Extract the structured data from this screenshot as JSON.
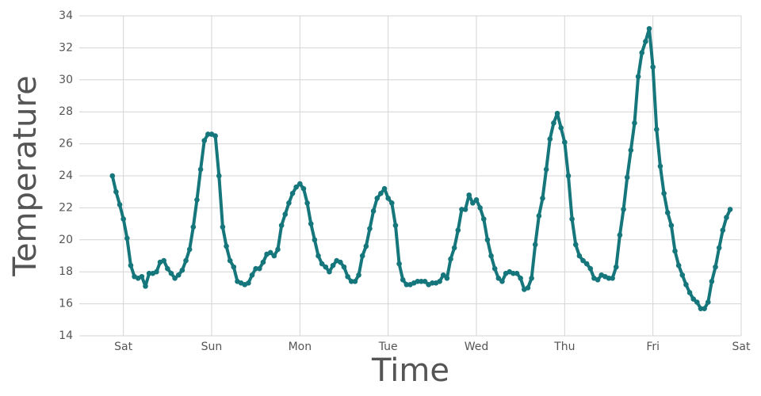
{
  "chart_data": {
    "type": "line",
    "xlabel": "Time",
    "ylabel": "Temperature",
    "color": "#15767b",
    "grid": true,
    "xlim": [
      -12,
      168
    ],
    "xticks": [
      {
        "value": 0,
        "label": "Sat"
      },
      {
        "value": 24,
        "label": "Sun"
      },
      {
        "value": 48,
        "label": "Mon"
      },
      {
        "value": 72,
        "label": "Tue"
      },
      {
        "value": 96,
        "label": "Wed"
      },
      {
        "value": 120,
        "label": "Thu"
      },
      {
        "value": 144,
        "label": "Fri"
      },
      {
        "value": 168,
        "label": "Sat"
      }
    ],
    "ylim": [
      14,
      34
    ],
    "yticks": [
      14,
      16,
      18,
      20,
      22,
      24,
      26,
      28,
      30,
      32,
      34
    ],
    "x": [
      -3,
      -2,
      -1,
      0,
      1,
      2,
      3,
      4,
      5,
      6,
      7,
      8,
      9,
      10,
      11,
      12,
      13,
      14,
      15,
      16,
      17,
      18,
      19,
      20,
      21,
      22,
      23,
      24,
      25,
      26,
      27,
      28,
      29,
      30,
      31,
      32,
      33,
      34,
      35,
      36,
      37,
      38,
      39,
      40,
      41,
      42,
      43,
      44,
      45,
      46,
      47,
      48,
      49,
      50,
      51,
      52,
      53,
      54,
      55,
      56,
      57,
      58,
      59,
      60,
      61,
      62,
      63,
      64,
      65,
      66,
      67,
      68,
      69,
      70,
      71,
      72,
      73,
      74,
      75,
      76,
      77,
      78,
      79,
      80,
      81,
      82,
      83,
      84,
      85,
      86,
      87,
      88,
      89,
      90,
      91,
      92,
      93,
      94,
      95,
      96,
      97,
      98,
      99,
      100,
      101,
      102,
      103,
      104,
      105,
      106,
      107,
      108,
      109,
      110,
      111,
      112,
      113,
      114,
      115,
      116,
      117,
      118,
      119,
      120,
      121,
      122,
      123,
      124,
      125,
      126,
      127,
      128,
      129,
      130,
      131,
      132,
      133,
      134,
      135,
      136,
      137,
      138,
      139,
      140,
      141,
      142,
      143,
      144,
      145,
      146,
      147,
      148,
      149,
      150,
      151,
      152,
      153,
      154,
      155,
      156,
      157,
      158,
      159,
      160,
      161,
      162,
      163,
      164,
      165
    ],
    "values": [
      24.0,
      23.0,
      22.2,
      21.3,
      20.1,
      18.4,
      17.7,
      17.6,
      17.7,
      17.1,
      17.9,
      17.9,
      18.0,
      18.6,
      18.7,
      18.2,
      17.9,
      17.6,
      17.8,
      18.1,
      18.7,
      19.4,
      20.8,
      22.5,
      24.4,
      26.2,
      26.6,
      26.6,
      26.5,
      24.0,
      20.8,
      19.6,
      18.7,
      18.3,
      17.4,
      17.3,
      17.2,
      17.3,
      17.8,
      18.2,
      18.2,
      18.6,
      19.1,
      19.2,
      19.0,
      19.4,
      20.9,
      21.6,
      22.3,
      22.9,
      23.3,
      23.5,
      23.2,
      22.3,
      21.0,
      20.0,
      19.0,
      18.5,
      18.3,
      18.0,
      18.4,
      18.7,
      18.6,
      18.3,
      17.7,
      17.4,
      17.4,
      17.8,
      19.0,
      19.6,
      20.7,
      21.8,
      22.6,
      22.9,
      23.2,
      22.6,
      22.3,
      20.9,
      18.5,
      17.5,
      17.2,
      17.2,
      17.3,
      17.4,
      17.4,
      17.4,
      17.2,
      17.3,
      17.3,
      17.4,
      17.8,
      17.6,
      18.8,
      19.5,
      20.6,
      21.9,
      21.9,
      22.8,
      22.3,
      22.5,
      22.0,
      21.3,
      20.0,
      19.0,
      18.2,
      17.6,
      17.4,
      17.9,
      18.0,
      17.9,
      17.9,
      17.6,
      16.9,
      17.0,
      17.6,
      19.7,
      21.5,
      22.6,
      24.4,
      26.3,
      27.3,
      27.9,
      27.0,
      26.1,
      24.0,
      21.3,
      19.7,
      19.0,
      18.7,
      18.5,
      18.2,
      17.6,
      17.5,
      17.8,
      17.7,
      17.6,
      17.6,
      18.3,
      20.3,
      21.9,
      23.9,
      25.6,
      27.3,
      30.2,
      31.7,
      32.4,
      33.2,
      30.8,
      26.9,
      24.6,
      22.9,
      21.7,
      20.9,
      19.3,
      18.4,
      17.8,
      17.2,
      16.7,
      16.3,
      16.1,
      15.7,
      15.7,
      16.1,
      17.4,
      18.3,
      19.5,
      20.6,
      21.4,
      21.9
    ]
  }
}
